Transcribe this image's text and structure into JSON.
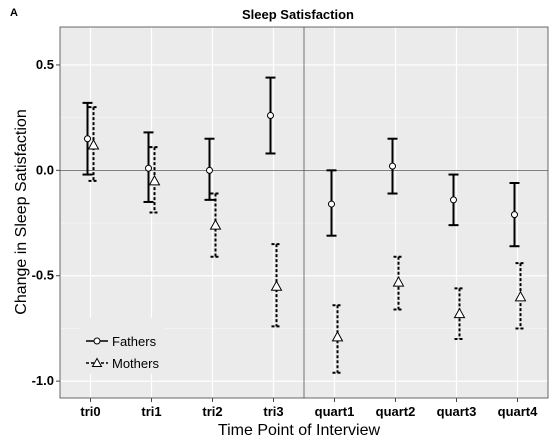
{
  "chart_data": {
    "type": "errorbar",
    "panel_label": "A",
    "title": "Sleep Satisfaction",
    "xlabel": "Time Point of Interview",
    "ylabel": "Change in Sleep Satisfaction",
    "categories": [
      "tri0",
      "tri1",
      "tri2",
      "tri3",
      "quart1",
      "quart2",
      "quart3",
      "quart4"
    ],
    "ylim": [
      -1.08,
      0.68
    ],
    "yticks": [
      0.5,
      0.0,
      -0.5,
      -1.0
    ],
    "ytick_labels": [
      "0.5",
      "0.0",
      "-0.5",
      "-1.0"
    ],
    "reference_line_y": 0.0,
    "divider_between": [
      "tri3",
      "quart1"
    ],
    "grid": true,
    "legend_position": "bottom-left",
    "series": [
      {
        "name": "Fathers",
        "marker": "circle",
        "line": "solid",
        "values": [
          0.15,
          0.01,
          0.0,
          0.26,
          -0.16,
          0.02,
          -0.14,
          -0.21
        ],
        "lower": [
          -0.02,
          -0.15,
          -0.14,
          0.08,
          -0.31,
          -0.11,
          -0.26,
          -0.36
        ],
        "upper": [
          0.32,
          0.18,
          0.15,
          0.44,
          0.0,
          0.15,
          -0.02,
          -0.06
        ]
      },
      {
        "name": "Mothers",
        "marker": "triangle",
        "line": "dashed",
        "values": [
          0.12,
          -0.05,
          -0.26,
          -0.55,
          -0.79,
          -0.53,
          -0.68,
          -0.6
        ],
        "lower": [
          -0.05,
          -0.2,
          -0.41,
          -0.74,
          -0.96,
          -0.66,
          -0.8,
          -0.75
        ],
        "upper": [
          0.3,
          0.11,
          -0.11,
          -0.35,
          -0.64,
          -0.41,
          -0.56,
          -0.44
        ]
      }
    ]
  }
}
